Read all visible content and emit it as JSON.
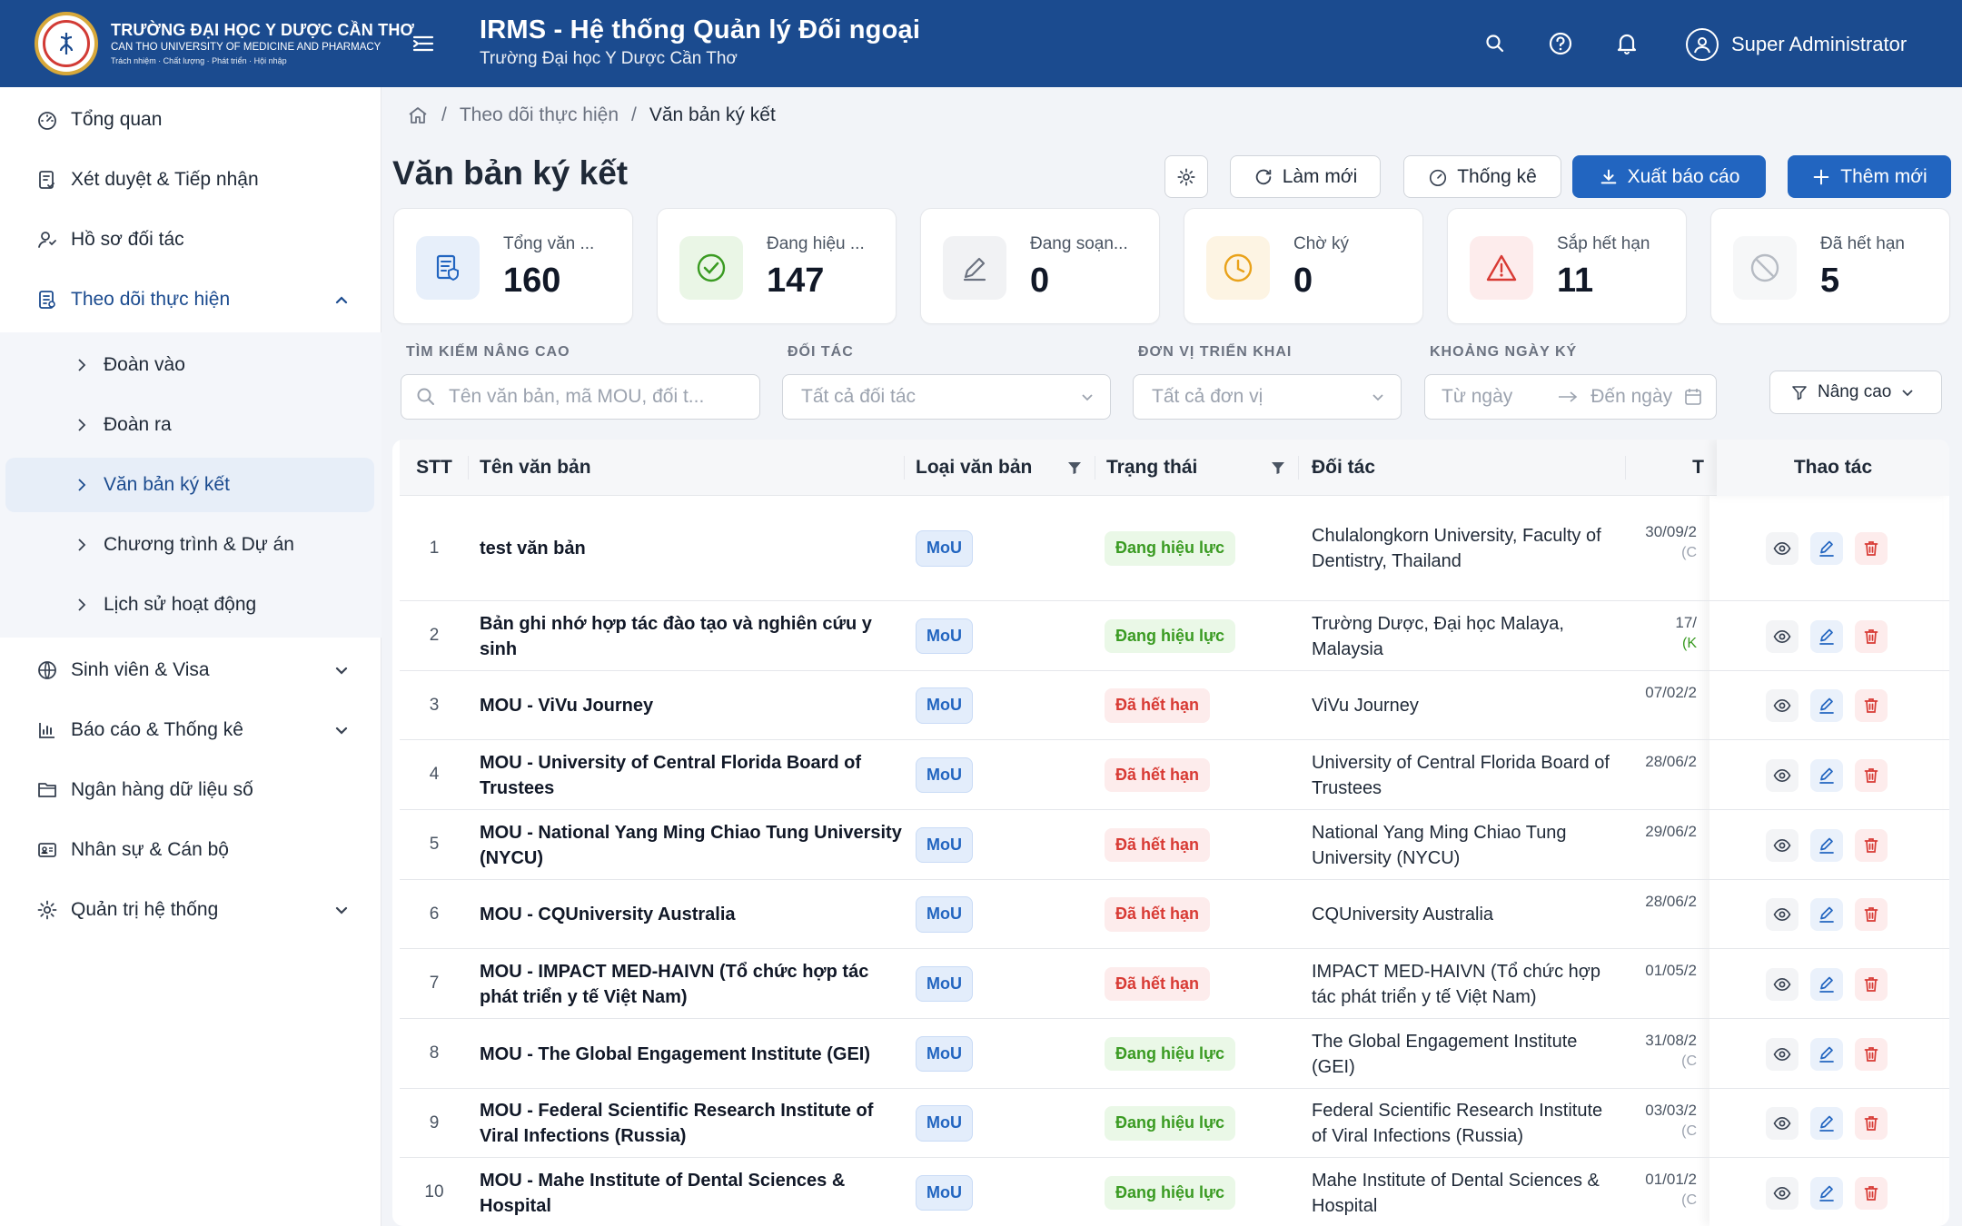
{
  "header": {
    "logo": {
      "line1": "TRƯỜNG ĐẠI HỌC Y DƯỢC CẦN THƠ",
      "line2": "CAN THO UNIVERSITY OF MEDICINE AND PHARMACY",
      "line3": "Trách nhiệm · Chất lượng · Phát triển · Hội nhập"
    },
    "app_title": "IRMS - Hệ thống Quản lý Đối ngoại",
    "subtitle": "Trường Đại học Y Dược Cần Thơ",
    "icons": [
      "menu-icon",
      "search-icon",
      "help-icon",
      "bell-icon",
      "user-icon"
    ],
    "user_name": "Super Administrator"
  },
  "sidebar": {
    "items": [
      {
        "label": "Tổng quan",
        "icon": "dashboard-icon"
      },
      {
        "label": "Xét duyệt & Tiếp nhận",
        "icon": "clipboard-check-icon"
      },
      {
        "label": "Hồ sơ đối tác",
        "icon": "partner-icon"
      },
      {
        "label": "Theo dõi thực hiện",
        "icon": "tracking-icon",
        "expanded": true
      },
      {
        "label": "Sinh viên & Visa",
        "icon": "globe-icon"
      },
      {
        "label": "Báo cáo & Thống kê",
        "icon": "chart-icon"
      },
      {
        "label": "Ngân hàng dữ liệu số",
        "icon": "folder-icon"
      },
      {
        "label": "Nhân sự & Cán bộ",
        "icon": "id-card-icon"
      },
      {
        "label": "Quản trị hệ thống",
        "icon": "gear-icon"
      }
    ],
    "subitems": [
      {
        "label": "Đoàn vào"
      },
      {
        "label": "Đoàn ra"
      },
      {
        "label": "Văn bản ký kết",
        "active": true
      },
      {
        "label": "Chương trình & Dự án"
      },
      {
        "label": "Lịch sử hoạt động"
      }
    ]
  },
  "breadcrumb": {
    "parent": "Theo dõi thực hiện",
    "current": "Văn bản ký kết"
  },
  "page": {
    "title": "Văn bản ký kết"
  },
  "toolbar": {
    "refresh": "Làm mới",
    "stats": "Thống kê",
    "export": "Xuất báo cáo",
    "add": "Thêm mới"
  },
  "stats": [
    {
      "label": "Tổng văn ...",
      "value": "160",
      "color": "#2265c0",
      "icon": "document-shield-icon"
    },
    {
      "label": "Đang hiệu ...",
      "value": "147",
      "color": "#3a9b22",
      "icon": "check-circle-icon"
    },
    {
      "label": "Đang soạn...",
      "value": "0",
      "color": "#6b7280",
      "icon": "pen-icon"
    },
    {
      "label": "Chờ ký",
      "value": "0",
      "color": "#e9a21a",
      "icon": "clock-icon"
    },
    {
      "label": "Sắp hết hạn",
      "value": "11",
      "color": "#d83a34",
      "icon": "warning-icon"
    },
    {
      "label": "Đã hết hạn",
      "value": "5",
      "color": "#9ca3af",
      "icon": "ban-icon"
    }
  ],
  "filters": {
    "search_label": "TÌM KIẾM NÂNG CAO",
    "search_placeholder": "Tên văn bản, mã MOU, đối t...",
    "partner_label": "ĐỐI TÁC",
    "partner_value": "Tất cả đối tác",
    "unit_label": "ĐƠN VỊ TRIỂN KHAI",
    "unit_value": "Tất cả đơn vị",
    "date_label": "KHOẢNG NGÀY KÝ",
    "date_from": "Từ ngày",
    "date_to": "Đến ngày",
    "advanced": "Nâng cao"
  },
  "table": {
    "columns": {
      "stt": "STT",
      "name": "Tên văn bản",
      "type": "Loại văn bản",
      "status": "Trạng thái",
      "partner": "Đối tác",
      "date": "T",
      "actions": "Thao tác"
    },
    "rows": [
      {
        "stt": "1",
        "name": "test văn bản",
        "type": "MoU",
        "status": "Đang hiệu lực",
        "status_kind": "ok",
        "partner": "Chulalongkorn University, Faculty of Dentistry, Thailand",
        "date": "30/09/2",
        "date_sub": "(C",
        "sub_kind": "gray"
      },
      {
        "stt": "2",
        "name": "Bản ghi nhớ hợp tác đào tạo và nghiên cứu y sinh",
        "type": "MoU",
        "status": "Đang hiệu lực",
        "status_kind": "ok",
        "partner": "Trường Dược, Đại học Malaya, Malaysia",
        "date": "17/",
        "date_sub": "(K",
        "sub_kind": "green"
      },
      {
        "stt": "3",
        "name": "MOU - ViVu Journey",
        "type": "MoU",
        "status": "Đã hết hạn",
        "status_kind": "exp",
        "partner": "ViVu Journey",
        "date": "07/02/2",
        "date_sub": "",
        "sub_kind": "gray"
      },
      {
        "stt": "4",
        "name": "MOU - University of Central Florida Board of Trustees",
        "type": "MoU",
        "status": "Đã hết hạn",
        "status_kind": "exp",
        "partner": "University of Central Florida Board of Trustees",
        "date": "28/06/2",
        "date_sub": "",
        "sub_kind": "gray"
      },
      {
        "stt": "5",
        "name": "MOU - National Yang Ming Chiao Tung University (NYCU)",
        "type": "MoU",
        "status": "Đã hết hạn",
        "status_kind": "exp",
        "partner": "National Yang Ming Chiao Tung University (NYCU)",
        "date": "29/06/2",
        "date_sub": "",
        "sub_kind": "gray"
      },
      {
        "stt": "6",
        "name": "MOU - CQUniversity Australia",
        "type": "MoU",
        "status": "Đã hết hạn",
        "status_kind": "exp",
        "partner": "CQUniversity Australia",
        "date": "28/06/2",
        "date_sub": "",
        "sub_kind": "gray"
      },
      {
        "stt": "7",
        "name": "MOU - IMPACT MED-HAIVN (Tổ chức hợp tác phát triển y tế Việt Nam)",
        "type": "MoU",
        "status": "Đã hết hạn",
        "status_kind": "exp",
        "partner": "IMPACT MED-HAIVN (Tổ chức hợp tác phát triển y tế Việt Nam)",
        "date": "01/05/2",
        "date_sub": "",
        "sub_kind": "gray"
      },
      {
        "stt": "8",
        "name": "MOU - The Global Engagement Institute (GEI)",
        "type": "MoU",
        "status": "Đang hiệu lực",
        "status_kind": "ok",
        "partner": "The Global Engagement Institute (GEI)",
        "date": "31/08/2",
        "date_sub": "(C",
        "sub_kind": "gray"
      },
      {
        "stt": "9",
        "name": "MOU - Federal Scientific Research Institute of Viral Infections (Russia)",
        "type": "MoU",
        "status": "Đang hiệu lực",
        "status_kind": "ok",
        "partner": "Federal Scientific Research Institute of Viral Infections (Russia)",
        "date": "03/03/2",
        "date_sub": "(C",
        "sub_kind": "gray"
      },
      {
        "stt": "10",
        "name": "MOU - Mahe Institute of Dental Sciences & Hospital",
        "type": "MoU",
        "status": "Đang hiệu lực",
        "status_kind": "ok",
        "partner": "Mahe Institute of Dental Sciences & Hospital",
        "date": "01/01/2",
        "date_sub": "(C",
        "sub_kind": "gray"
      }
    ]
  }
}
